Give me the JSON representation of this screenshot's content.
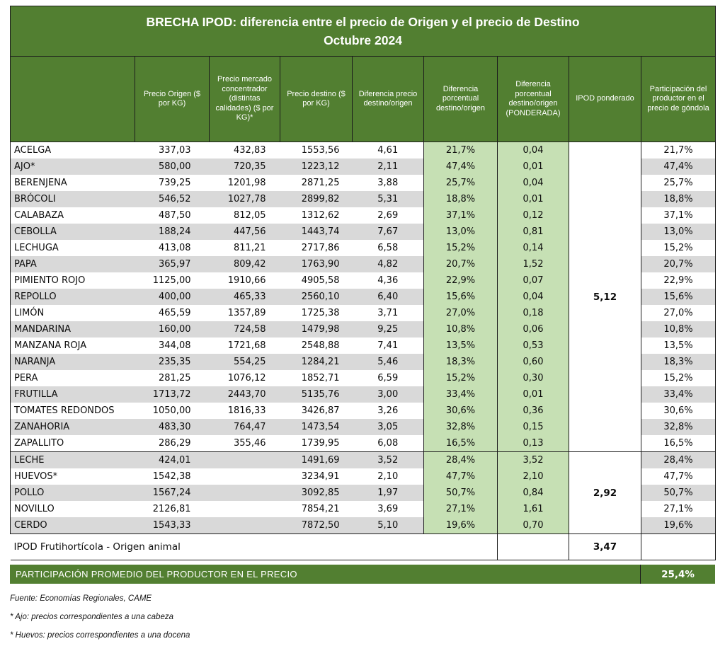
{
  "chart_data": {
    "type": "table",
    "title": "BRECHA IPOD: diferencia entre el precio de Origen y el precio de Destino",
    "subtitle": "Octubre 2024",
    "columns": [
      "",
      "Precio Origen ($ por KG)",
      "Precio mercado concentrador (distintas calidades) ($ por KG)*",
      "Precio destino ($ por KG)",
      "Diferencia precio destino/origen",
      "Diferencia porcentual destino/origen",
      "Diferencia porcentual destino/origen (PONDERADA)",
      "IPOD ponderado",
      "Participación del productor en el precio de góndola"
    ],
    "groups": [
      {
        "label": "frutihorticola",
        "ipod_ponderado": "5,12",
        "rows": [
          [
            "ACELGA",
            "337,03",
            "432,83",
            "1553,56",
            "4,61",
            "21,7%",
            "0,04",
            "21,7%"
          ],
          [
            "AJO*",
            "580,00",
            "720,35",
            "1223,12",
            "2,11",
            "47,4%",
            "0,01",
            "47,4%"
          ],
          [
            "BERENJENA",
            "739,25",
            "1201,98",
            "2871,25",
            "3,88",
            "25,7%",
            "0,04",
            "25,7%"
          ],
          [
            "BRÓCOLI",
            "546,52",
            "1027,78",
            "2899,82",
            "5,31",
            "18,8%",
            "0,01",
            "18,8%"
          ],
          [
            "CALABAZA",
            "487,50",
            "812,05",
            "1312,62",
            "2,69",
            "37,1%",
            "0,12",
            "37,1%"
          ],
          [
            "CEBOLLA",
            "188,24",
            "447,56",
            "1443,74",
            "7,67",
            "13,0%",
            "0,81",
            "13,0%"
          ],
          [
            "LECHUGA",
            "413,08",
            "811,21",
            "2717,86",
            "6,58",
            "15,2%",
            "0,14",
            "15,2%"
          ],
          [
            "PAPA",
            "365,97",
            "809,42",
            "1763,90",
            "4,82",
            "20,7%",
            "1,52",
            "20,7%"
          ],
          [
            "PIMIENTO ROJO",
            "1125,00",
            "1910,66",
            "4905,58",
            "4,36",
            "22,9%",
            "0,07",
            "22,9%"
          ],
          [
            "REPOLLO",
            "400,00",
            "465,33",
            "2560,10",
            "6,40",
            "15,6%",
            "0,04",
            "15,6%"
          ],
          [
            "LIMÓN",
            "465,59",
            "1357,89",
            "1725,38",
            "3,71",
            "27,0%",
            "0,18",
            "27,0%"
          ],
          [
            "MANDARINA",
            "160,00",
            "724,58",
            "1479,98",
            "9,25",
            "10,8%",
            "0,06",
            "10,8%"
          ],
          [
            "MANZANA ROJA",
            "344,08",
            "1721,68",
            "2548,88",
            "7,41",
            "13,5%",
            "0,53",
            "13,5%"
          ],
          [
            "NARANJA",
            "235,35",
            "554,25",
            "1284,21",
            "5,46",
            "18,3%",
            "0,60",
            "18,3%"
          ],
          [
            "PERA",
            "281,25",
            "1076,12",
            "1852,71",
            "6,59",
            "15,2%",
            "0,30",
            "15,2%"
          ],
          [
            "FRUTILLA",
            "1713,72",
            "2443,70",
            "5135,76",
            "3,00",
            "33,4%",
            "0,01",
            "33,4%"
          ],
          [
            "TOMATES REDONDOS",
            "1050,00",
            "1816,33",
            "3426,87",
            "3,26",
            "30,6%",
            "0,36",
            "30,6%"
          ],
          [
            "ZANAHORIA",
            "483,30",
            "764,47",
            "1473,54",
            "3,05",
            "32,8%",
            "0,15",
            "32,8%"
          ],
          [
            "ZAPALLITO",
            "286,29",
            "355,46",
            "1739,95",
            "6,08",
            "16,5%",
            "0,13",
            "16,5%"
          ]
        ]
      },
      {
        "label": "origen-animal",
        "ipod_ponderado": "2,92",
        "rows": [
          [
            "LECHE",
            "424,01",
            "",
            "1491,69",
            "3,52",
            "28,4%",
            "3,52",
            "28,4%"
          ],
          [
            "HUEVOS*",
            "1542,38",
            "",
            "3234,91",
            "2,10",
            "47,7%",
            "2,10",
            "47,7%"
          ],
          [
            "POLLO",
            "1567,24",
            "",
            "3092,85",
            "1,97",
            "50,7%",
            "0,84",
            "50,7%"
          ],
          [
            "NOVILLO",
            "2126,81",
            "",
            "7854,21",
            "3,69",
            "27,1%",
            "1,61",
            "27,1%"
          ],
          [
            "CERDO",
            "1543,33",
            "",
            "7872,50",
            "5,10",
            "19,6%",
            "0,70",
            "19,6%"
          ]
        ]
      }
    ],
    "summary": {
      "label": "IPOD Frutihortícola - Origen animal",
      "ipod_ponderado": "3,47"
    },
    "participation": {
      "label": "PARTICIPACIÓN PROMEDIO DEL PRODUCTOR EN EL PRECIO",
      "value": "25,4%"
    }
  },
  "footnotes": [
    "Fuente: Economías Regionales, CAME",
    "* Ajo: precios correspondientes a una cabeza",
    "* Huevos: precios correspondientes a una docena"
  ],
  "colors": {
    "header_green": "#527f31",
    "light_green": "#c6e0b4",
    "stripe_gray": "#d9d9d9",
    "border": "#1c1c1c",
    "text": "#0d0d0d"
  }
}
